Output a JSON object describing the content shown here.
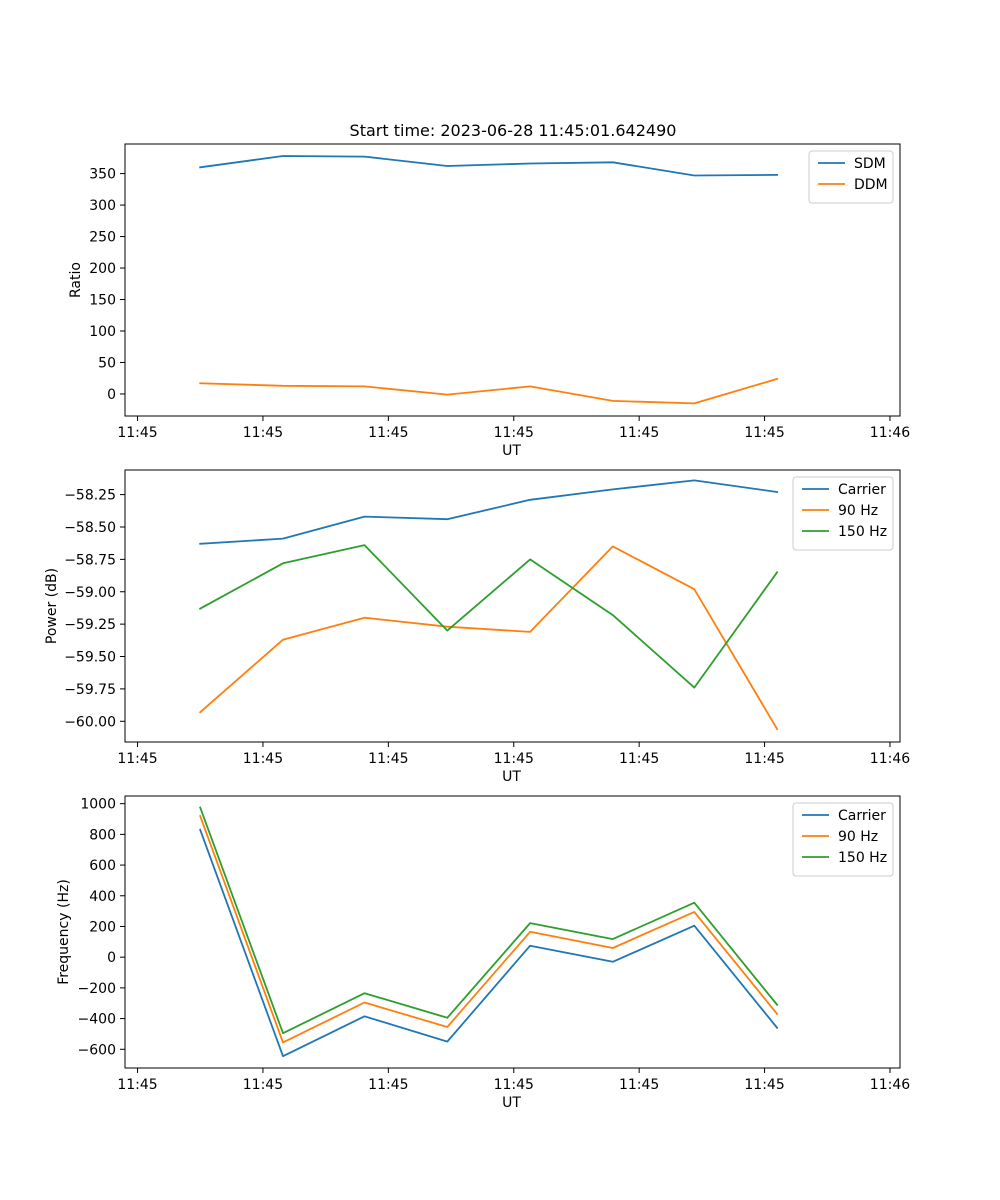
{
  "figure_title": "Start time: 2023-06-28 11:45:01.642490",
  "colors": {
    "blue": "#1f77b4",
    "orange": "#ff7f0e",
    "green": "#2ca02c"
  },
  "chart_data": [
    {
      "type": "line",
      "title": "Start time: 2023-06-28 11:45:01.642490",
      "xlabel": "UT",
      "ylabel": "Ratio",
      "x_unit": "seconds after 11:45:00 UT",
      "xlim": [
        0.5,
        62.3
      ],
      "x_ticks": [
        1.5,
        11.5,
        21.5,
        31.5,
        41.5,
        51.5,
        61.5
      ],
      "x_tick_labels": [
        "11:45",
        "11:45",
        "11:45",
        "11:45",
        "11:45",
        "11:45",
        "11:46"
      ],
      "ylim": [
        -35,
        397
      ],
      "y_ticks": [
        0,
        50,
        100,
        150,
        200,
        250,
        300,
        350
      ],
      "y_tick_labels": [
        "0",
        "50",
        "100",
        "150",
        "200",
        "250",
        "300",
        "350"
      ],
      "grid": false,
      "legend_position": "top-right",
      "x": [
        6.5,
        13.1,
        19.6,
        26.2,
        32.8,
        39.4,
        45.9,
        52.5
      ],
      "series": [
        {
          "name": "SDM",
          "color": "#1f77b4",
          "values": [
            360,
            378,
            377,
            362,
            366,
            368,
            347,
            348
          ]
        },
        {
          "name": "DDM",
          "color": "#ff7f0e",
          "values": [
            17,
            13,
            12,
            -1,
            12,
            -11,
            -15,
            24
          ]
        }
      ]
    },
    {
      "type": "line",
      "xlabel": "UT",
      "ylabel": "Power (dB)",
      "x_unit": "seconds after 11:45:00 UT",
      "xlim": [
        0.5,
        62.3
      ],
      "x_ticks": [
        1.5,
        11.5,
        21.5,
        31.5,
        41.5,
        51.5,
        61.5
      ],
      "x_tick_labels": [
        "11:45",
        "11:45",
        "11:45",
        "11:45",
        "11:45",
        "11:45",
        "11:46"
      ],
      "ylim": [
        -60.16,
        -58.06
      ],
      "y_ticks": [
        -60.0,
        -59.75,
        -59.5,
        -59.25,
        -59.0,
        -58.75,
        -58.5,
        -58.25
      ],
      "y_tick_labels": [
        "−60.00",
        "−59.75",
        "−59.50",
        "−59.25",
        "−59.00",
        "−58.75",
        "−58.50",
        "−58.25"
      ],
      "grid": false,
      "legend_position": "top-right",
      "x": [
        6.5,
        13.1,
        19.6,
        26.2,
        32.8,
        39.4,
        45.9,
        52.5
      ],
      "series": [
        {
          "name": "Carrier",
          "color": "#1f77b4",
          "values": [
            -58.63,
            -58.59,
            -58.42,
            -58.44,
            -58.29,
            -58.21,
            -58.14,
            -58.23
          ]
        },
        {
          "name": "90 Hz",
          "color": "#ff7f0e",
          "values": [
            -59.93,
            -59.37,
            -59.2,
            -59.27,
            -59.31,
            -58.65,
            -58.98,
            -60.06
          ]
        },
        {
          "name": "150 Hz",
          "color": "#2ca02c",
          "values": [
            -59.13,
            -58.78,
            -58.64,
            -59.3,
            -58.75,
            -59.18,
            -59.74,
            -58.85
          ]
        }
      ]
    },
    {
      "type": "line",
      "xlabel": "UT",
      "ylabel": "Frequency (Hz)",
      "x_unit": "seconds after 11:45:00 UT",
      "xlim": [
        0.5,
        62.3
      ],
      "x_ticks": [
        1.5,
        11.5,
        21.5,
        31.5,
        41.5,
        51.5,
        61.5
      ],
      "x_tick_labels": [
        "11:45",
        "11:45",
        "11:45",
        "11:45",
        "11:45",
        "11:45",
        "11:46"
      ],
      "ylim": [
        -722,
        1050
      ],
      "y_ticks": [
        -600,
        -400,
        -200,
        0,
        200,
        400,
        600,
        800,
        1000
      ],
      "y_tick_labels": [
        "−600",
        "−400",
        "−200",
        "0",
        "200",
        "400",
        "600",
        "800",
        "1000"
      ],
      "grid": false,
      "legend_position": "top-right",
      "x": [
        6.5,
        13.1,
        19.6,
        26.2,
        32.8,
        39.4,
        45.9,
        52.5
      ],
      "series": [
        {
          "name": "Carrier",
          "color": "#1f77b4",
          "values": [
            830,
            -645,
            -385,
            -550,
            75,
            -30,
            205,
            -460
          ]
        },
        {
          "name": "90 Hz",
          "color": "#ff7f0e",
          "values": [
            920,
            -555,
            -295,
            -455,
            165,
            60,
            295,
            -370
          ]
        },
        {
          "name": "150 Hz",
          "color": "#2ca02c",
          "values": [
            975,
            -495,
            -235,
            -395,
            222,
            118,
            355,
            -310
          ]
        }
      ]
    }
  ]
}
